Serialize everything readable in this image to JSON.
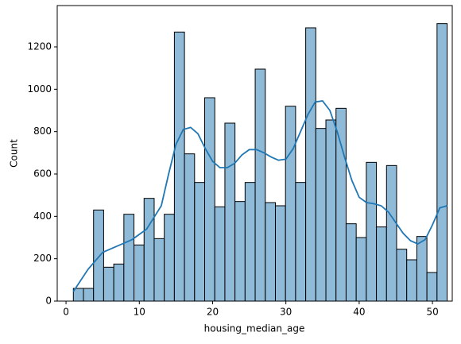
{
  "chart_data": {
    "type": "histogram",
    "xlabel": "housing_median_age",
    "ylabel": "Count",
    "bins": [
      1,
      2.378,
      3.757,
      5.135,
      6.514,
      7.892,
      9.27,
      10.649,
      12.027,
      13.405,
      14.784,
      16.162,
      17.541,
      18.919,
      20.297,
      21.676,
      23.054,
      24.432,
      25.811,
      27.189,
      28.568,
      29.946,
      31.324,
      32.703,
      34.081,
      35.459,
      36.838,
      38.216,
      39.595,
      40.973,
      42.351,
      43.73,
      45.108,
      46.486,
      47.865,
      49.243,
      50.622,
      52
    ],
    "counts": [
      60,
      60,
      430,
      160,
      175,
      410,
      265,
      485,
      295,
      410,
      1270,
      695,
      560,
      960,
      445,
      840,
      470,
      560,
      1095,
      465,
      450,
      920,
      560,
      1290,
      815,
      855,
      910,
      365,
      300,
      655,
      350,
      640,
      245,
      195,
      305,
      135,
      1310
    ],
    "color": "#8fbbd9",
    "edgecolor": "#000000",
    "kde": {
      "color": "#1f77b4",
      "x": [
        1,
        3,
        5,
        7,
        9,
        11,
        13,
        14,
        15,
        16,
        17,
        18,
        19,
        20,
        21,
        22,
        23,
        24,
        25,
        26,
        27,
        28,
        29,
        30,
        31,
        32,
        33,
        34,
        35,
        36,
        37,
        38,
        39,
        40,
        41,
        42,
        43,
        44,
        45,
        46,
        47,
        48,
        49,
        50,
        51,
        52
      ],
      "values": [
        45,
        150,
        230,
        260,
        290,
        340,
        450,
        600,
        740,
        810,
        820,
        790,
        720,
        660,
        630,
        630,
        650,
        690,
        715,
        715,
        700,
        680,
        665,
        670,
        720,
        800,
        880,
        940,
        945,
        900,
        800,
        680,
        570,
        490,
        465,
        460,
        450,
        420,
        370,
        320,
        285,
        270,
        290,
        360,
        440,
        450
      ]
    },
    "xlim": [
      -1.2,
      52.7
    ],
    "ylim": [
      0,
      1395
    ],
    "xticks": [
      0,
      10,
      20,
      30,
      40,
      50
    ],
    "yticks": [
      0,
      200,
      400,
      600,
      800,
      1000,
      1200
    ]
  }
}
